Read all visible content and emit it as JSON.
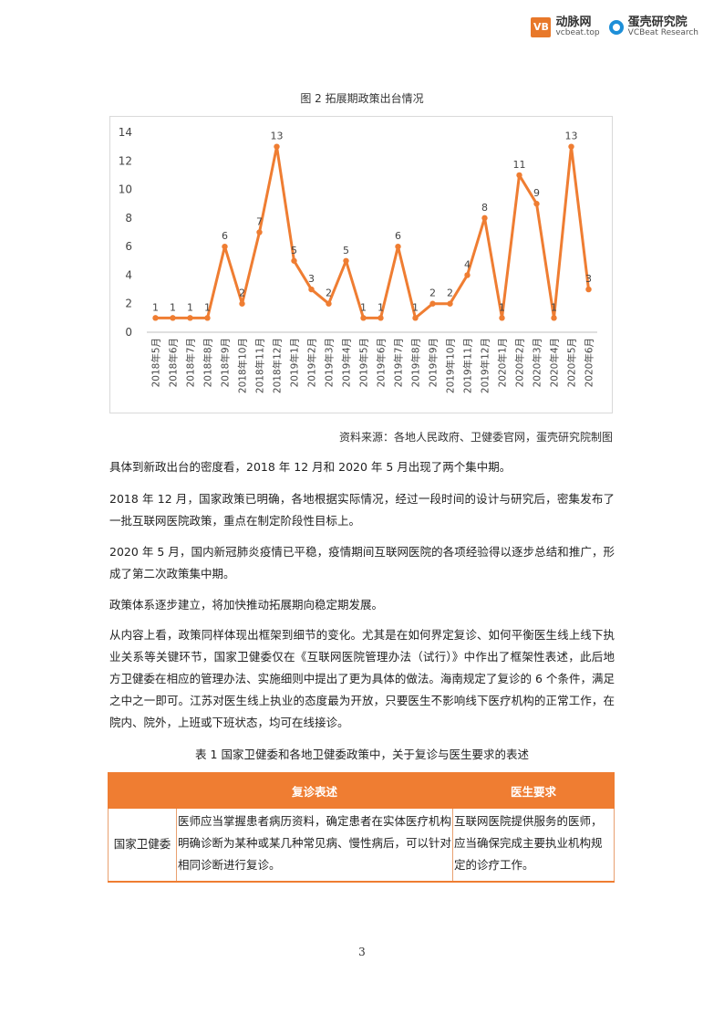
{
  "header": {
    "logo_vb_mark": "VB",
    "logo_vb_cn": "动脉网",
    "logo_vb_en": "vcbeat.top",
    "logo_eg_cn": "蛋壳研究院",
    "logo_eg_en": "VCBeat Research"
  },
  "figure": {
    "caption": "图 2 拓展期政策出台情况",
    "source": "资料来源：各地人民政府、卫健委官网，蛋壳研究院制图"
  },
  "chart_data": {
    "type": "line",
    "categories": [
      "2018年5月",
      "2018年6月",
      "2018年7月",
      "2018年8月",
      "2018年9月",
      "2018年10月",
      "2018年11月",
      "2018年12月",
      "2019年1月",
      "2019年2月",
      "2019年3月",
      "2019年4月",
      "2019年5月",
      "2019年6月",
      "2019年7月",
      "2019年8月",
      "2019年9月",
      "2019年10月",
      "2019年11月",
      "2019年12月",
      "2020年1月",
      "2020年2月",
      "2020年3月",
      "2020年4月",
      "2020年5月",
      "2020年6月"
    ],
    "values": [
      1,
      1,
      1,
      1,
      6,
      2,
      7,
      13,
      5,
      3,
      2,
      5,
      1,
      1,
      6,
      1,
      2,
      2,
      4,
      8,
      1,
      11,
      9,
      1,
      13,
      3
    ],
    "yticks": [
      0,
      2,
      4,
      6,
      8,
      10,
      12,
      14
    ],
    "ylim": [
      0,
      14
    ],
    "color": "#ef7d32",
    "title": "",
    "xlabel": "",
    "ylabel": ""
  },
  "paragraphs": [
    "具体到新政出台的密度看，2018 年 12 月和 2020 年 5 月出现了两个集中期。",
    "2018 年 12 月，国家政策已明确，各地根据实际情况，经过一段时间的设计与研究后，密集发布了一批互联网医院政策，重点在制定阶段性目标上。",
    "2020 年 5 月，国内新冠肺炎疫情已平稳，疫情期间互联网医院的各项经验得以逐步总结和推广，形成了第二次政策集中期。",
    "政策体系逐步建立，将加快推动拓展期向稳定期发展。",
    "从内容上看，政策同样体现出框架到细节的变化。尤其是在如何界定复诊、如何平衡医生线上线下执业关系等关键环节，国家卫健委仅在《互联网医院管理办法（试行）》中作出了框架性表述，此后地方卫健委在相应的管理办法、实施细则中提出了更为具体的做法。海南规定了复诊的 6 个条件，满足之中之一即可。江苏对医生线上执业的态度最为开放，只要医生不影响线下医疗机构的正常工作，在院内、院外，上班或下班状态，均可在线接诊。"
  ],
  "table": {
    "caption": "表 1 国家卫健委和各地卫健委政策中，关于复诊与医生要求的表述",
    "headers": [
      "",
      "复诊表述",
      "医生要求"
    ],
    "rows": [
      {
        "region": "国家卫健委",
        "review": "医师应当掌握患者病历资料，确定患者在实体医疗机构明确诊断为某种或某几种常见病、慢性病后，可以针对相同诊断进行复诊。",
        "doctor": "互联网医院提供服务的医师，应当确保完成主要执业机构规定的诊疗工作。"
      }
    ]
  },
  "page_number": "3"
}
